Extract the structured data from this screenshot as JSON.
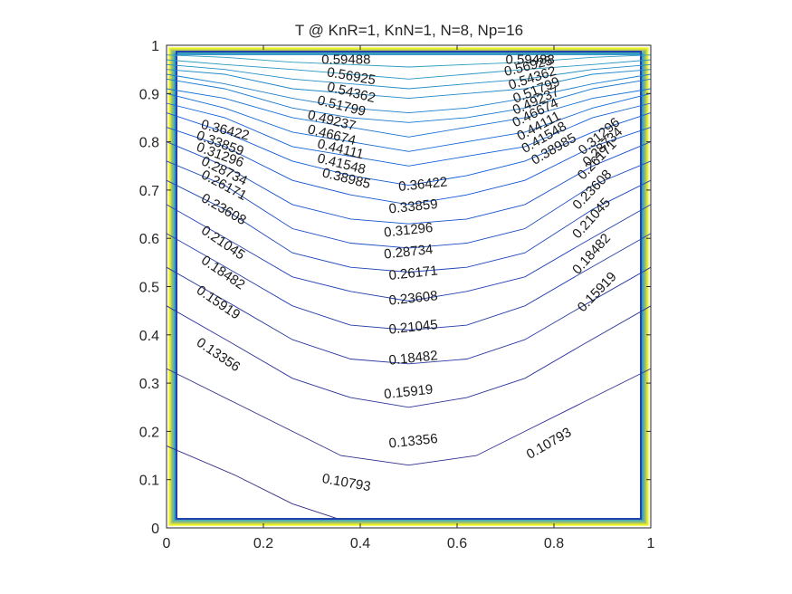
{
  "chart_data": {
    "type": "contour",
    "title": "T @ KnR=1, KnN=1, N=8, Np=16",
    "xlabel": "",
    "ylabel": "",
    "xlim": [
      0,
      1
    ],
    "ylim": [
      0,
      1
    ],
    "grid": false,
    "legend": "none",
    "x_ticks": [
      "0",
      "0.2",
      "0.4",
      "0.6",
      "0.8",
      "1"
    ],
    "y_ticks": [
      "0",
      "0.1",
      "0.2",
      "0.3",
      "0.4",
      "0.5",
      "0.6",
      "0.7",
      "0.8",
      "0.9",
      "1"
    ],
    "x_tick_values": [
      0,
      0.2,
      0.4,
      0.6,
      0.8,
      1
    ],
    "y_tick_values": [
      0,
      0.1,
      0.2,
      0.3,
      0.4,
      0.5,
      0.6,
      0.7,
      0.8,
      0.9,
      1
    ],
    "levels": [
      {
        "label": "0.10793",
        "points": [
          [
            0.0,
            0.17
          ],
          [
            0.14,
            0.11
          ],
          [
            0.26,
            0.05
          ],
          [
            0.35,
            0.02
          ]
        ],
        "value": 0.10793
      },
      {
        "label": "0.13356",
        "points": [
          [
            0.0,
            0.33
          ],
          [
            0.14,
            0.26
          ],
          [
            0.26,
            0.2
          ],
          [
            0.36,
            0.15
          ],
          [
            0.5,
            0.13
          ],
          [
            0.64,
            0.15
          ],
          [
            0.74,
            0.2
          ],
          [
            0.86,
            0.26
          ],
          [
            1.0,
            0.33
          ]
        ],
        "value": 0.13356
      },
      {
        "label": "0.15919",
        "points": [
          [
            0.0,
            0.46
          ],
          [
            0.14,
            0.38
          ],
          [
            0.26,
            0.31
          ],
          [
            0.38,
            0.27
          ],
          [
            0.5,
            0.25
          ],
          [
            0.62,
            0.27
          ],
          [
            0.74,
            0.31
          ],
          [
            0.86,
            0.38
          ],
          [
            1.0,
            0.46
          ]
        ],
        "value": 0.15919
      },
      {
        "label": "0.18482",
        "points": [
          [
            0.0,
            0.54
          ],
          [
            0.14,
            0.46
          ],
          [
            0.26,
            0.39
          ],
          [
            0.38,
            0.35
          ],
          [
            0.5,
            0.34
          ],
          [
            0.62,
            0.35
          ],
          [
            0.74,
            0.39
          ],
          [
            0.86,
            0.46
          ],
          [
            1.0,
            0.54
          ]
        ],
        "value": 0.18482
      },
      {
        "label": "0.21045",
        "points": [
          [
            0.0,
            0.61
          ],
          [
            0.14,
            0.53
          ],
          [
            0.26,
            0.46
          ],
          [
            0.38,
            0.42
          ],
          [
            0.5,
            0.41
          ],
          [
            0.62,
            0.42
          ],
          [
            0.74,
            0.46
          ],
          [
            0.86,
            0.53
          ],
          [
            1.0,
            0.61
          ]
        ],
        "value": 0.21045
      },
      {
        "label": "0.23608",
        "points": [
          [
            0.0,
            0.67
          ],
          [
            0.14,
            0.59
          ],
          [
            0.26,
            0.52
          ],
          [
            0.38,
            0.49
          ],
          [
            0.5,
            0.47
          ],
          [
            0.62,
            0.49
          ],
          [
            0.74,
            0.52
          ],
          [
            0.86,
            0.59
          ],
          [
            1.0,
            0.67
          ]
        ],
        "value": 0.23608
      },
      {
        "label": "0.26171",
        "points": [
          [
            0.0,
            0.72
          ],
          [
            0.12,
            0.66
          ],
          [
            0.26,
            0.57
          ],
          [
            0.38,
            0.54
          ],
          [
            0.5,
            0.53
          ],
          [
            0.62,
            0.54
          ],
          [
            0.74,
            0.57
          ],
          [
            0.88,
            0.66
          ],
          [
            1.0,
            0.72
          ]
        ],
        "value": 0.26171
      },
      {
        "label": "0.28734",
        "points": [
          [
            0.0,
            0.76
          ],
          [
            0.12,
            0.71
          ],
          [
            0.26,
            0.62
          ],
          [
            0.38,
            0.59
          ],
          [
            0.5,
            0.58
          ],
          [
            0.62,
            0.59
          ],
          [
            0.74,
            0.62
          ],
          [
            0.88,
            0.71
          ],
          [
            1.0,
            0.76
          ]
        ],
        "value": 0.28734
      },
      {
        "label": "0.31296",
        "points": [
          [
            0.0,
            0.8
          ],
          [
            0.12,
            0.75
          ],
          [
            0.26,
            0.67
          ],
          [
            0.38,
            0.64
          ],
          [
            0.5,
            0.63
          ],
          [
            0.62,
            0.64
          ],
          [
            0.74,
            0.67
          ],
          [
            0.88,
            0.75
          ],
          [
            1.0,
            0.8
          ]
        ],
        "value": 0.31296
      },
      {
        "label": "0.33859",
        "points": [
          [
            0.0,
            0.83
          ],
          [
            0.12,
            0.79
          ],
          [
            0.26,
            0.72
          ],
          [
            0.38,
            0.69
          ],
          [
            0.5,
            0.67
          ],
          [
            0.62,
            0.69
          ],
          [
            0.74,
            0.72
          ],
          [
            0.88,
            0.79
          ],
          [
            1.0,
            0.83
          ]
        ],
        "value": 0.33859
      },
      {
        "label": "0.36422",
        "points": [
          [
            0.0,
            0.86
          ],
          [
            0.12,
            0.82
          ],
          [
            0.26,
            0.76
          ],
          [
            0.38,
            0.73
          ],
          [
            0.5,
            0.71
          ],
          [
            0.62,
            0.73
          ],
          [
            0.74,
            0.76
          ],
          [
            0.88,
            0.82
          ],
          [
            1.0,
            0.86
          ]
        ],
        "value": 0.36422
      },
      {
        "label": "0.38985",
        "points": [
          [
            0.0,
            0.88
          ],
          [
            0.12,
            0.85
          ],
          [
            0.26,
            0.79
          ],
          [
            0.38,
            0.77
          ],
          [
            0.5,
            0.75
          ],
          [
            0.62,
            0.77
          ],
          [
            0.74,
            0.79
          ],
          [
            0.88,
            0.85
          ],
          [
            1.0,
            0.88
          ]
        ],
        "value": 0.38985
      },
      {
        "label": "0.41548",
        "points": [
          [
            0.0,
            0.9
          ],
          [
            0.12,
            0.87
          ],
          [
            0.26,
            0.82
          ],
          [
            0.38,
            0.8
          ],
          [
            0.5,
            0.78
          ],
          [
            0.62,
            0.8
          ],
          [
            0.74,
            0.82
          ],
          [
            0.88,
            0.87
          ],
          [
            1.0,
            0.9
          ]
        ],
        "value": 0.41548
      },
      {
        "label": "0.44111",
        "points": [
          [
            0.0,
            0.91
          ],
          [
            0.12,
            0.89
          ],
          [
            0.26,
            0.85
          ],
          [
            0.38,
            0.83
          ],
          [
            0.5,
            0.81
          ],
          [
            0.62,
            0.83
          ],
          [
            0.74,
            0.85
          ],
          [
            0.88,
            0.89
          ],
          [
            1.0,
            0.91
          ]
        ],
        "value": 0.44111
      },
      {
        "label": "0.46674",
        "points": [
          [
            0.0,
            0.93
          ],
          [
            0.12,
            0.91
          ],
          [
            0.26,
            0.87
          ],
          [
            0.38,
            0.85
          ],
          [
            0.5,
            0.84
          ],
          [
            0.62,
            0.85
          ],
          [
            0.74,
            0.87
          ],
          [
            0.88,
            0.91
          ],
          [
            1.0,
            0.93
          ]
        ],
        "value": 0.46674
      },
      {
        "label": "0.49237",
        "points": [
          [
            0.0,
            0.94
          ],
          [
            0.12,
            0.92
          ],
          [
            0.26,
            0.89
          ],
          [
            0.38,
            0.87
          ],
          [
            0.5,
            0.86
          ],
          [
            0.62,
            0.87
          ],
          [
            0.74,
            0.89
          ],
          [
            0.88,
            0.92
          ],
          [
            1.0,
            0.94
          ]
        ],
        "value": 0.49237
      },
      {
        "label": "0.51799",
        "points": [
          [
            0.0,
            0.95
          ],
          [
            0.12,
            0.94
          ],
          [
            0.26,
            0.91
          ],
          [
            0.38,
            0.9
          ],
          [
            0.5,
            0.89
          ],
          [
            0.62,
            0.9
          ],
          [
            0.74,
            0.91
          ],
          [
            0.88,
            0.94
          ],
          [
            1.0,
            0.95
          ]
        ],
        "value": 0.51799
      },
      {
        "label": "0.54362",
        "points": [
          [
            0.0,
            0.96
          ],
          [
            0.12,
            0.95
          ],
          [
            0.26,
            0.93
          ],
          [
            0.38,
            0.92
          ],
          [
            0.5,
            0.91
          ],
          [
            0.62,
            0.92
          ],
          [
            0.74,
            0.93
          ],
          [
            0.88,
            0.95
          ],
          [
            1.0,
            0.96
          ]
        ],
        "value": 0.54362
      },
      {
        "label": "0.56925",
        "points": [
          [
            0.0,
            0.97
          ],
          [
            0.12,
            0.96
          ],
          [
            0.26,
            0.95
          ],
          [
            0.38,
            0.94
          ],
          [
            0.5,
            0.93
          ],
          [
            0.62,
            0.94
          ],
          [
            0.74,
            0.95
          ],
          [
            0.88,
            0.96
          ],
          [
            1.0,
            0.97
          ]
        ],
        "value": 0.56925
      },
      {
        "label": "0.59488",
        "points": [
          [
            0.0,
            0.98
          ],
          [
            0.12,
            0.975
          ],
          [
            0.26,
            0.965
          ],
          [
            0.38,
            0.96
          ],
          [
            0.5,
            0.955
          ],
          [
            0.62,
            0.96
          ],
          [
            0.74,
            0.965
          ],
          [
            0.88,
            0.975
          ],
          [
            1.0,
            0.98
          ]
        ],
        "value": 0.59488
      }
    ],
    "contour_labels": [
      {
        "text": "0.59488",
        "x": 0.32,
        "y": 0.962,
        "angle": 0
      },
      {
        "text": "0.56925",
        "x": 0.33,
        "y": 0.936,
        "angle": 10
      },
      {
        "text": "0.54362",
        "x": 0.33,
        "y": 0.906,
        "angle": 14
      },
      {
        "text": "0.51799",
        "x": 0.31,
        "y": 0.878,
        "angle": 14
      },
      {
        "text": "0.49237",
        "x": 0.29,
        "y": 0.848,
        "angle": 14
      },
      {
        "text": "0.46674",
        "x": 0.29,
        "y": 0.818,
        "angle": 14
      },
      {
        "text": "0.44111",
        "x": 0.31,
        "y": 0.788,
        "angle": 14
      },
      {
        "text": "0.41548",
        "x": 0.31,
        "y": 0.758,
        "angle": 14
      },
      {
        "text": "0.38985",
        "x": 0.32,
        "y": 0.728,
        "angle": 14
      },
      {
        "text": "0.36422",
        "x": 0.07,
        "y": 0.828,
        "angle": 14
      },
      {
        "text": "0.33859",
        "x": 0.06,
        "y": 0.806,
        "angle": 20
      },
      {
        "text": "0.31296",
        "x": 0.06,
        "y": 0.782,
        "angle": 20
      },
      {
        "text": "0.28734",
        "x": 0.07,
        "y": 0.754,
        "angle": 26
      },
      {
        "text": "0.26171",
        "x": 0.07,
        "y": 0.726,
        "angle": 28
      },
      {
        "text": "0.23608",
        "x": 0.07,
        "y": 0.678,
        "angle": 30
      },
      {
        "text": "0.21045",
        "x": 0.07,
        "y": 0.612,
        "angle": 34
      },
      {
        "text": "0.18482",
        "x": 0.07,
        "y": 0.55,
        "angle": 34
      },
      {
        "text": "0.15919",
        "x": 0.06,
        "y": 0.488,
        "angle": 34
      },
      {
        "text": "0.13356",
        "x": 0.06,
        "y": 0.38,
        "angle": 34
      },
      {
        "text": "0.10793",
        "x": 0.32,
        "y": 0.094,
        "angle": 10
      },
      {
        "text": "0.36422",
        "x": 0.48,
        "y": 0.698,
        "angle": -6
      },
      {
        "text": "0.33859",
        "x": 0.46,
        "y": 0.652,
        "angle": -6
      },
      {
        "text": "0.31296",
        "x": 0.45,
        "y": 0.603,
        "angle": -6
      },
      {
        "text": "0.28734",
        "x": 0.45,
        "y": 0.558,
        "angle": -6
      },
      {
        "text": "0.26171",
        "x": 0.46,
        "y": 0.514,
        "angle": -6
      },
      {
        "text": "0.23608",
        "x": 0.46,
        "y": 0.462,
        "angle": -6
      },
      {
        "text": "0.21045",
        "x": 0.46,
        "y": 0.402,
        "angle": -6
      },
      {
        "text": "0.18482",
        "x": 0.46,
        "y": 0.338,
        "angle": -6
      },
      {
        "text": "0.15919",
        "x": 0.45,
        "y": 0.268,
        "angle": -6
      },
      {
        "text": "0.13356",
        "x": 0.46,
        "y": 0.166,
        "angle": -6
      },
      {
        "text": "0.59488",
        "x": 0.7,
        "y": 0.962,
        "angle": 0
      },
      {
        "text": "0.56925",
        "x": 0.7,
        "y": 0.936,
        "angle": -14
      },
      {
        "text": "0.54362",
        "x": 0.71,
        "y": 0.908,
        "angle": -18
      },
      {
        "text": "0.51799",
        "x": 0.72,
        "y": 0.88,
        "angle": -22
      },
      {
        "text": "0.49237",
        "x": 0.72,
        "y": 0.856,
        "angle": -24
      },
      {
        "text": "0.46674",
        "x": 0.72,
        "y": 0.83,
        "angle": -26
      },
      {
        "text": "0.44111",
        "x": 0.73,
        "y": 0.802,
        "angle": -28
      },
      {
        "text": "0.41548",
        "x": 0.74,
        "y": 0.776,
        "angle": -30
      },
      {
        "text": "0.38985",
        "x": 0.76,
        "y": 0.752,
        "angle": -30
      },
      {
        "text": "0.31296",
        "x": 0.86,
        "y": 0.772,
        "angle": -40
      },
      {
        "text": "0.28734",
        "x": 0.87,
        "y": 0.748,
        "angle": -44
      },
      {
        "text": "0.26171",
        "x": 0.86,
        "y": 0.72,
        "angle": -46
      },
      {
        "text": "0.23608",
        "x": 0.85,
        "y": 0.658,
        "angle": -46
      },
      {
        "text": "0.21045",
        "x": 0.85,
        "y": 0.598,
        "angle": -48
      },
      {
        "text": "0.18482",
        "x": 0.85,
        "y": 0.524,
        "angle": -48
      },
      {
        "text": "0.15919",
        "x": 0.86,
        "y": 0.446,
        "angle": -46
      },
      {
        "text": "0.10793",
        "x": 0.75,
        "y": 0.142,
        "angle": -30
      }
    ],
    "colormap": "parula",
    "colors": {
      "low": "#352a87",
      "mid_low": "#0f5cdd",
      "mid": "#2ea8b8",
      "mid_high": "#a5be6a",
      "high": "#f9fb0e"
    }
  }
}
